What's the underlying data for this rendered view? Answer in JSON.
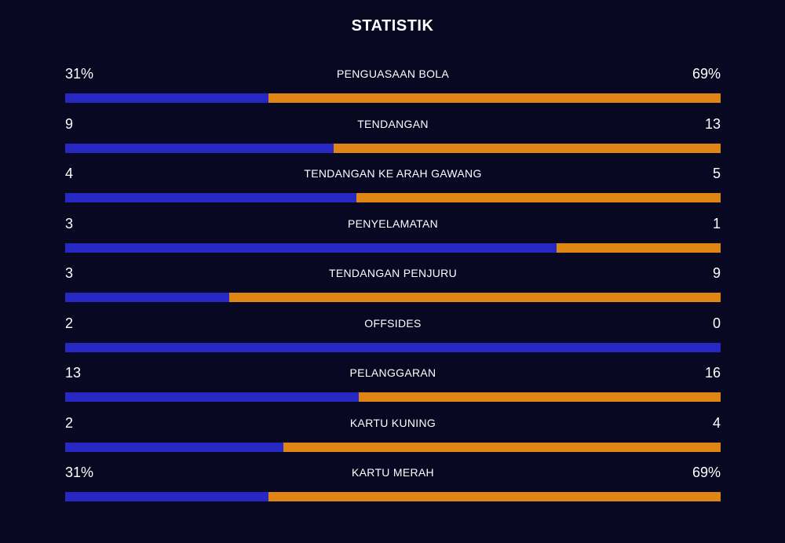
{
  "title": "STATISTIK",
  "colors": {
    "background": "#080822",
    "home_bar": "#2727c4",
    "away_bar": "#df8513",
    "text": "#ffffff"
  },
  "stats": [
    {
      "label": "PENGUASAAN BOLA",
      "left": "31%",
      "right": "69%",
      "left_share": 0.31
    },
    {
      "label": "TENDANGAN",
      "left": "9",
      "right": "13",
      "left_share": 0.409
    },
    {
      "label": "TENDANGAN KE ARAH GAWANG",
      "left": "4",
      "right": "5",
      "left_share": 0.444
    },
    {
      "label": "PENYELAMATAN",
      "left": "3",
      "right": "1",
      "left_share": 0.75
    },
    {
      "label": "TENDANGAN PENJURU",
      "left": "3",
      "right": "9",
      "left_share": 0.25
    },
    {
      "label": "OFFSIDES",
      "left": "2",
      "right": "0",
      "left_share": 1.0
    },
    {
      "label": "PELANGGARAN",
      "left": "13",
      "right": "16",
      "left_share": 0.448
    },
    {
      "label": "KARTU KUNING",
      "left": "2",
      "right": "4",
      "left_share": 0.333
    },
    {
      "label": "KARTU MERAH",
      "left": "31%",
      "right": "69%",
      "left_share": 0.31
    }
  ]
}
